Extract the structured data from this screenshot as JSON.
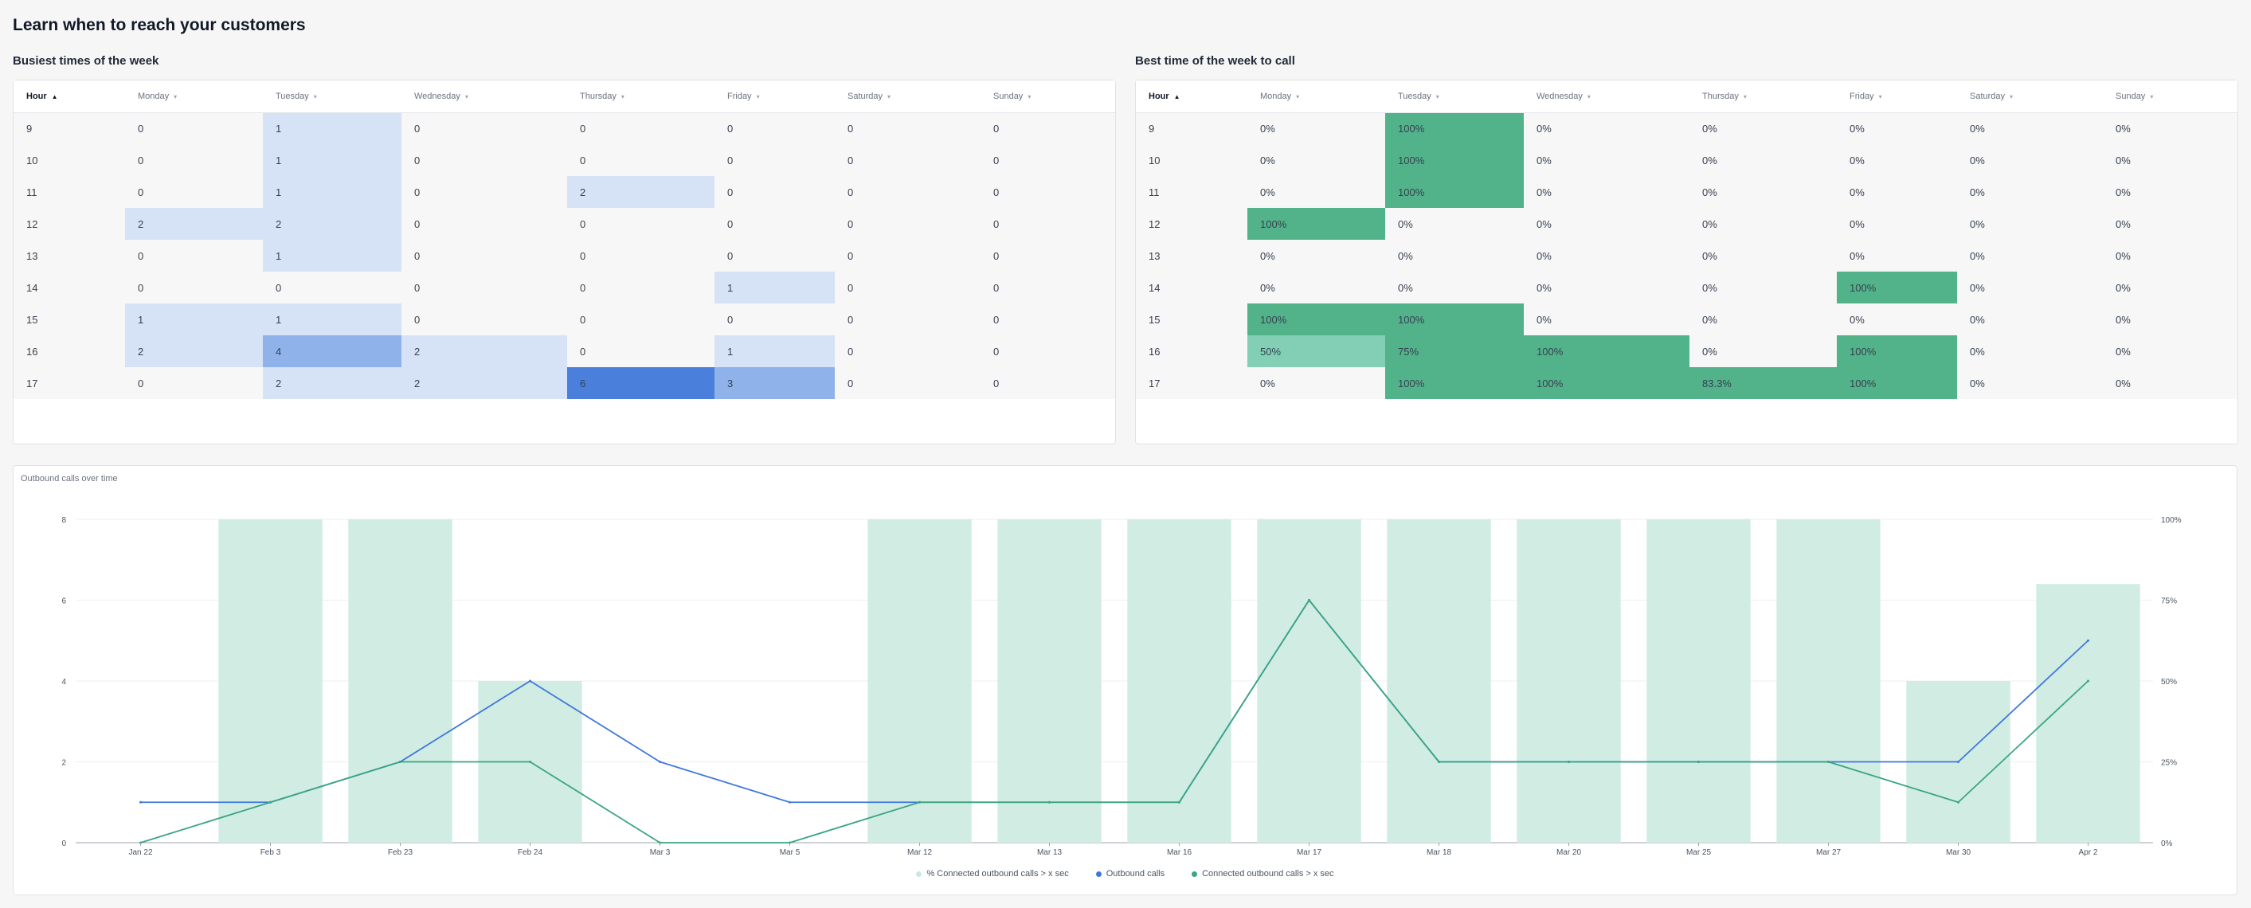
{
  "title": "Learn when to reach your customers",
  "busiest": {
    "title": "Busiest times of the week",
    "hour_label": "Hour",
    "days": [
      "Monday",
      "Tuesday",
      "Wednesday",
      "Thursday",
      "Friday",
      "Saturday",
      "Sunday"
    ],
    "rows": [
      {
        "hour": "9",
        "values": [
          0,
          1,
          0,
          0,
          0,
          0,
          0
        ]
      },
      {
        "hour": "10",
        "values": [
          0,
          1,
          0,
          0,
          0,
          0,
          0
        ]
      },
      {
        "hour": "11",
        "values": [
          0,
          1,
          0,
          2,
          0,
          0,
          0
        ]
      },
      {
        "hour": "12",
        "values": [
          2,
          2,
          0,
          0,
          0,
          0,
          0
        ]
      },
      {
        "hour": "13",
        "values": [
          0,
          1,
          0,
          0,
          0,
          0,
          0
        ]
      },
      {
        "hour": "14",
        "values": [
          0,
          0,
          0,
          0,
          1,
          0,
          0
        ]
      },
      {
        "hour": "15",
        "values": [
          1,
          1,
          0,
          0,
          0,
          0,
          0
        ]
      },
      {
        "hour": "16",
        "values": [
          2,
          4,
          2,
          0,
          1,
          0,
          0
        ]
      },
      {
        "hour": "17",
        "values": [
          0,
          2,
          2,
          6,
          3,
          0,
          0
        ]
      }
    ],
    "colors": {
      "low": "#d6e2f5",
      "mid": "#8fb2ea",
      "high": "#4a7fdc"
    }
  },
  "best": {
    "title": "Best time of the week to call",
    "hour_label": "Hour",
    "days": [
      "Monday",
      "Tuesday",
      "Wednesday",
      "Thursday",
      "Friday",
      "Saturday",
      "Sunday"
    ],
    "rows": [
      {
        "hour": "9",
        "values": [
          "0%",
          "100%",
          "0%",
          "0%",
          "0%",
          "0%",
          "0%"
        ]
      },
      {
        "hour": "10",
        "values": [
          "0%",
          "100%",
          "0%",
          "0%",
          "0%",
          "0%",
          "0%"
        ]
      },
      {
        "hour": "11",
        "values": [
          "0%",
          "100%",
          "0%",
          "0%",
          "0%",
          "0%",
          "0%"
        ]
      },
      {
        "hour": "12",
        "values": [
          "100%",
          "0%",
          "0%",
          "0%",
          "0%",
          "0%",
          "0%"
        ]
      },
      {
        "hour": "13",
        "values": [
          "0%",
          "0%",
          "0%",
          "0%",
          "0%",
          "0%",
          "0%"
        ]
      },
      {
        "hour": "14",
        "values": [
          "0%",
          "0%",
          "0%",
          "0%",
          "100%",
          "0%",
          "0%"
        ]
      },
      {
        "hour": "15",
        "values": [
          "100%",
          "100%",
          "0%",
          "0%",
          "0%",
          "0%",
          "0%"
        ]
      },
      {
        "hour": "16",
        "values": [
          "50%",
          "75%",
          "100%",
          "0%",
          "100%",
          "0%",
          "0%"
        ]
      },
      {
        "hour": "17",
        "values": [
          "0%",
          "100%",
          "100%",
          "83.3%",
          "100%",
          "0%",
          "0%"
        ]
      }
    ],
    "colors": {
      "strong": "#52b28a",
      "light": "#82cfb6"
    }
  },
  "chart_data": {
    "type": "bar",
    "title": "Outbound calls over time",
    "categories": [
      "Jan 22",
      "Feb 3",
      "Feb 23",
      "Feb 24",
      "Mar 3",
      "Mar 5",
      "Mar 12",
      "Mar 13",
      "Mar 16",
      "Mar 17",
      "Mar 18",
      "Mar 20",
      "Mar 25",
      "Mar 27",
      "Mar 30",
      "Apr 2"
    ],
    "series": [
      {
        "name": "% Connected outbound calls > x sec",
        "type": "bar",
        "axis": "right",
        "values": [
          0,
          100,
          100,
          50,
          0,
          0,
          100,
          100,
          100,
          100,
          100,
          100,
          100,
          100,
          50,
          80
        ],
        "color": "#d1ece3"
      },
      {
        "name": "Outbound calls",
        "type": "line",
        "axis": "left",
        "values": [
          1,
          1,
          2,
          4,
          2,
          1,
          1,
          1,
          1,
          6,
          2,
          2,
          2,
          2,
          2,
          5
        ],
        "color": "#3f78dd"
      },
      {
        "name": "Connected outbound calls > x sec",
        "type": "line",
        "axis": "left",
        "values": [
          0,
          1,
          2,
          2,
          0,
          0,
          1,
          1,
          1,
          6,
          2,
          2,
          2,
          2,
          1,
          4
        ],
        "color": "#3aa583"
      }
    ],
    "y_left_ticks": [
      "0",
      "2",
      "4",
      "6",
      "8"
    ],
    "y_left_range": [
      0,
      8
    ],
    "y_right_ticks": [
      "0%",
      "25%",
      "50%",
      "75%",
      "100%"
    ],
    "y_right_range": [
      0,
      100
    ],
    "grid": true,
    "legend": "bottom"
  }
}
